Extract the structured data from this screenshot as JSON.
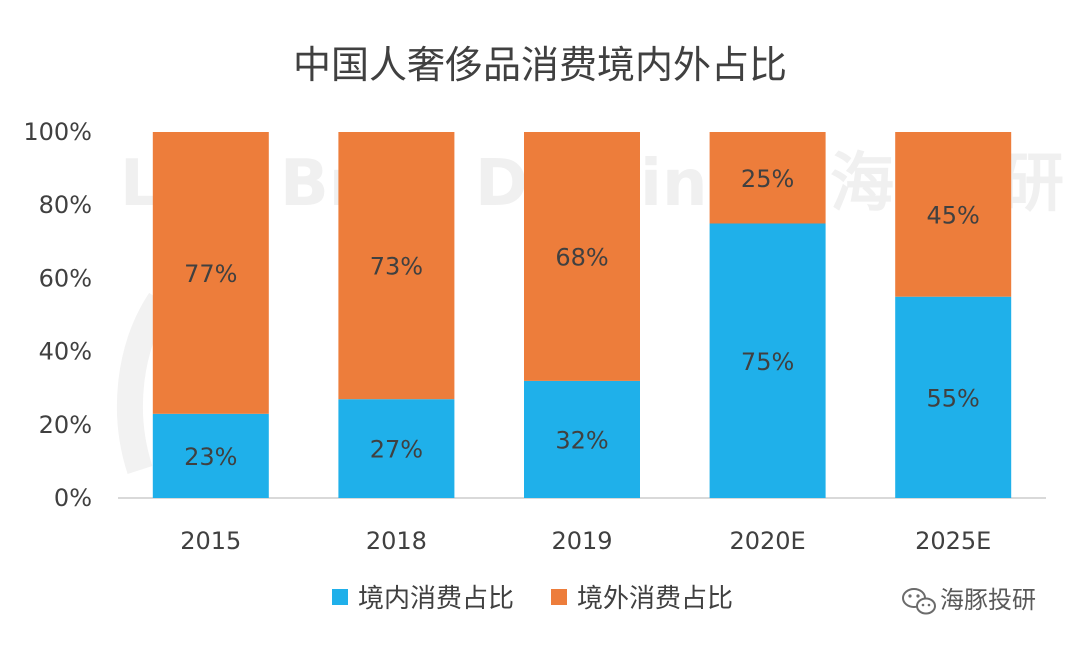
{
  "chart_data": {
    "type": "bar",
    "stacked": true,
    "title": "中国人奢侈品消费境内外占比",
    "categories": [
      "2015",
      "2018",
      "2019",
      "2020E",
      "2025E"
    ],
    "series": [
      {
        "name": "境内消费占比",
        "values": [
          23,
          27,
          32,
          75,
          55
        ],
        "color": "#1FB0EA",
        "labels": [
          "23%",
          "27%",
          "32%",
          "75%",
          "55%"
        ]
      },
      {
        "name": "境外消费占比",
        "values": [
          77,
          73,
          68,
          25,
          45
        ],
        "color": "#ED7D3B",
        "labels": [
          "77%",
          "73%",
          "68%",
          "25%",
          "45%"
        ]
      }
    ],
    "ylim": [
      0,
      100
    ],
    "yticks": [
      "0%",
      "20%",
      "40%",
      "60%",
      "80%",
      "100%"
    ],
    "grid": false,
    "legend_position": "bottom"
  },
  "watermark": {
    "text": "海豚投研",
    "icon": "wechat-icon"
  }
}
